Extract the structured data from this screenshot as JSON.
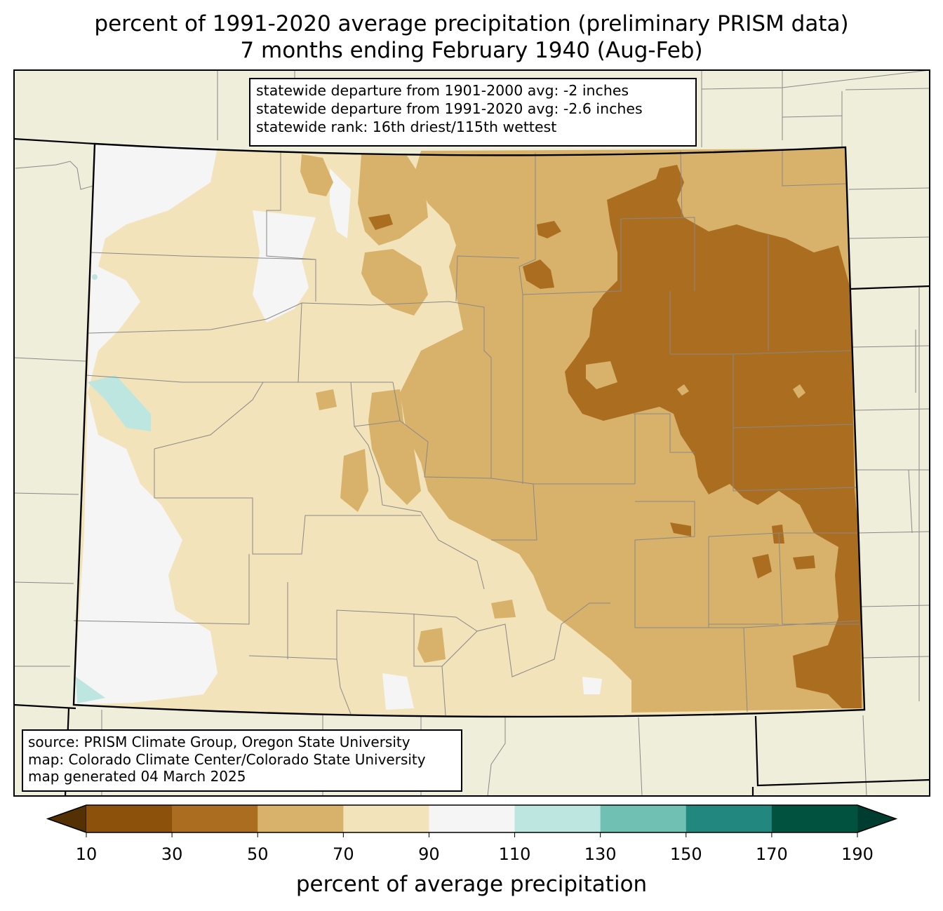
{
  "title": {
    "line1": "percent of 1991-2020 average precipitation (preliminary PRISM data)",
    "line2": "7 months ending February 1940 (Aug-Feb)"
  },
  "stats": {
    "line1": "statewide departure from 1901-2000 avg: -2 inches",
    "line2": "statewide departure from 1991-2020 avg: -2.6 inches",
    "line3": "statewide rank: 16th driest/115th wettest"
  },
  "source": {
    "line1": "source: PRISM Climate Group, Oregon State University",
    "line2": "map: Colorado Climate Center/Colorado State University",
    "line3": "map generated 04 March 2025"
  },
  "colorbar": {
    "label": "percent of average precipitation",
    "ticks": [
      "10",
      "30",
      "50",
      "70",
      "90",
      "110",
      "130",
      "150",
      "170",
      "190"
    ],
    "under_color": "#543005",
    "over_color": "#003c30",
    "colors": [
      "#8c510a",
      "#ab6e20",
      "#d8b26b",
      "#f3e3bb",
      "#f4f5f4",
      "#bde6e1",
      "#70c0b3",
      "#21877f",
      "#01523f"
    ]
  },
  "map_colors": {
    "background": "#efeedb",
    "pct_30_50": "#ab6e20",
    "pct_50_70": "#d8b26b",
    "pct_70_90": "#f3e3bb",
    "pct_90_110": "#f4f5f4",
    "pct_110_130": "#bde6e1"
  }
}
